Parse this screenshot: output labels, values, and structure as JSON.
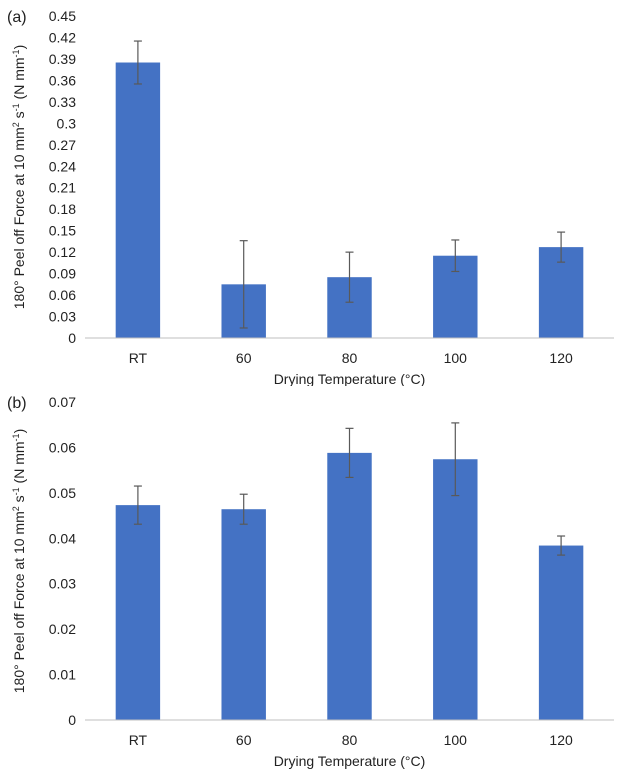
{
  "chart_data": [
    {
      "type": "bar",
      "panel_label": "(a)",
      "categories": [
        "RT",
        "60",
        "80",
        "100",
        "120"
      ],
      "values": [
        0.385,
        0.075,
        0.085,
        0.115,
        0.127
      ],
      "errors": [
        0.03,
        0.061,
        0.035,
        0.022,
        0.021
      ],
      "xlabel": "Drying Temperature (°C)",
      "ylabel": {
        "prefix": "180° Peel off Force at 10 mm",
        "sup1": "2",
        "mid": " s",
        "sup2": "-1",
        "mid2": " (N mm",
        "sup3": "-1",
        "suffix": ")"
      },
      "ylim": [
        0,
        0.45
      ],
      "yticks": [
        "0",
        "0.03",
        "0.06",
        "0.09",
        "0.12",
        "0.15",
        "0.18",
        "0.21",
        "0.24",
        "0.27",
        "0.3",
        "0.33",
        "0.36",
        "0.39",
        "0.42",
        "0.45"
      ],
      "grid": false,
      "bar_color": "#4472c4"
    },
    {
      "type": "bar",
      "panel_label": "(b)",
      "categories": [
        "RT",
        "60",
        "80",
        "100",
        "120"
      ],
      "values": [
        0.0473,
        0.0464,
        0.0588,
        0.0574,
        0.0384
      ],
      "errors": [
        0.0042,
        0.0033,
        0.0054,
        0.008,
        0.0021
      ],
      "xlabel": "Drying Temperature (°C)",
      "ylabel": {
        "prefix": "180° Peel off Force at 10 mm",
        "sup1": "2",
        "mid": " s",
        "sup2": "-1",
        "mid2": " (N mm",
        "sup3": "-1",
        "suffix": ")"
      },
      "ylim": [
        0,
        0.07
      ],
      "yticks": [
        "0",
        "0.01",
        "0.02",
        "0.03",
        "0.04",
        "0.05",
        "0.06",
        "0.07"
      ],
      "grid": false,
      "bar_color": "#4472c4"
    }
  ]
}
